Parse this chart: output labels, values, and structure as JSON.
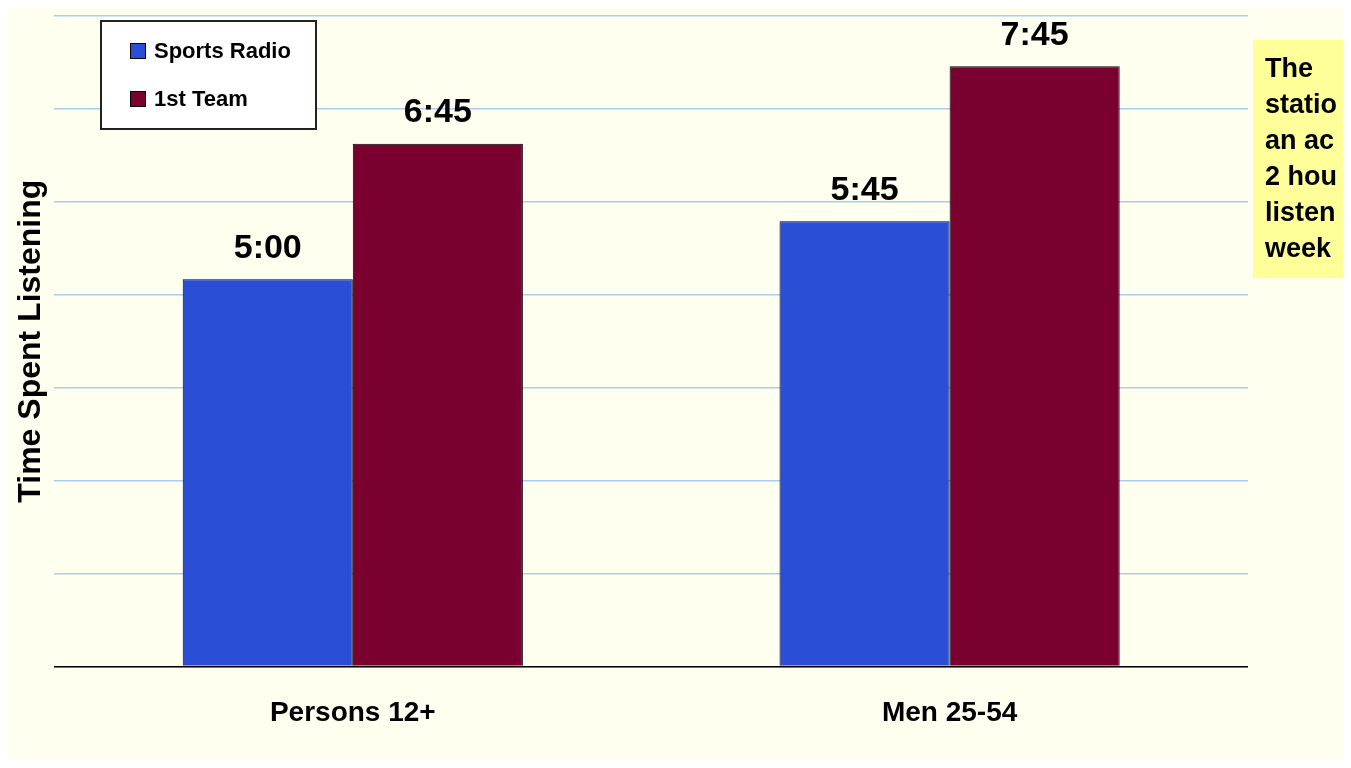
{
  "chart_data": {
    "type": "bar",
    "ylabel": "Time Spent Listening",
    "categories": [
      "Persons 12+",
      "Men 25-54"
    ],
    "series": [
      {
        "name": "Sports Radio",
        "color": "#2a4fd6",
        "values": [
          5,
          5.75
        ],
        "value_labels": [
          "5:00",
          "5:45"
        ]
      },
      {
        "name": "1st Team",
        "color": "#7a0030",
        "values": [
          6.75,
          7.75
        ],
        "value_labels": [
          "6:45",
          "7:45"
        ]
      }
    ],
    "ylim": [
      0,
      8.4
    ],
    "yticks": [
      {
        "value": 0,
        "label": null
      },
      {
        "value": 1.2,
        "label": null
      },
      {
        "value": 2.4,
        "label": null
      },
      {
        "value": 3.6,
        "label": null
      },
      {
        "value": 4.8,
        "label": null
      },
      {
        "value": 6,
        "label": null
      },
      {
        "value": 7.2,
        "label": null
      },
      {
        "value": 8.4,
        "label": null
      }
    ],
    "grid": "y",
    "legend": "top left",
    "tick_labels": "x",
    "annotations": [
      "The\nstatio\nan ac\n2 hou\nlisten\nweek"
    ]
  }
}
